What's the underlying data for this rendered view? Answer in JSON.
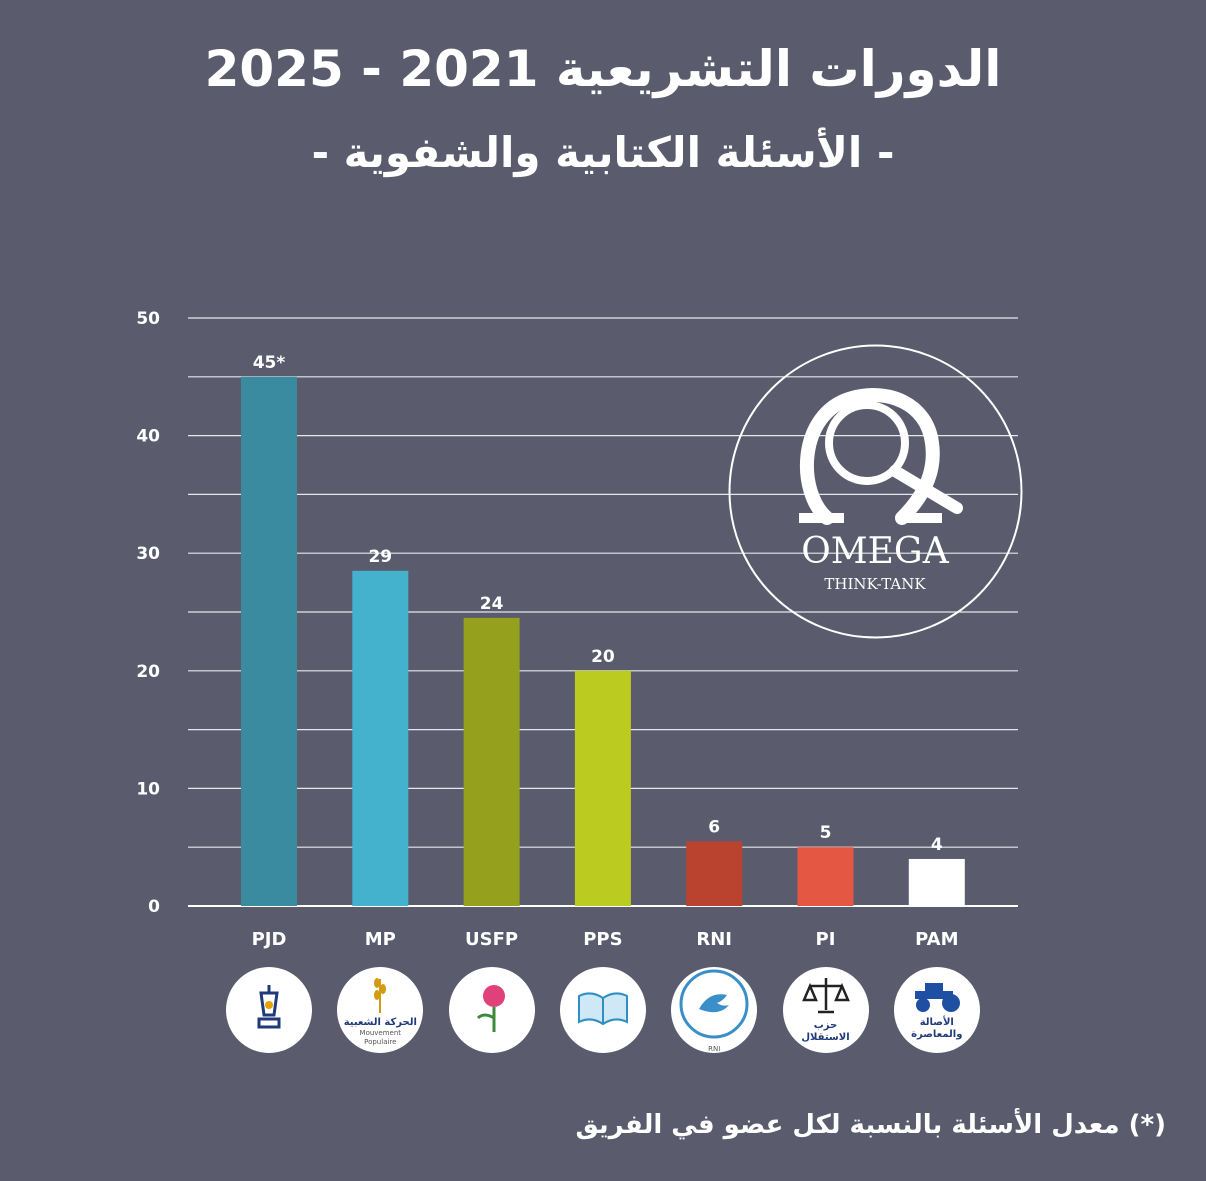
{
  "header": {
    "title": "الدورات التشريعية 2021 - 2025",
    "subtitle": "- الأسئلة الكتابية والشفوية -"
  },
  "chart_data": {
    "type": "bar",
    "title": "الدورات التشريعية 2021 - 2025",
    "subtitle": "- الأسئلة الكتابية والشفوية -",
    "xlabel": "",
    "ylabel": "",
    "ylim": [
      0,
      50
    ],
    "yticks": [
      0,
      10,
      20,
      30,
      40,
      50
    ],
    "grid": true,
    "categories": [
      "PJD",
      "MP",
      "USFP",
      "PPS",
      "RNI",
      "PI",
      "PAM"
    ],
    "values": [
      45,
      28.5,
      24.5,
      20,
      5.5,
      5,
      4
    ],
    "data_labels": [
      "45*",
      "29",
      "24",
      "20",
      "6",
      "5",
      "4"
    ],
    "colors": [
      "#3a8aa0",
      "#44b1cd",
      "#95a01d",
      "#bccb1f",
      "#b9432f",
      "#e35743",
      "#ffffff"
    ]
  },
  "watermark": {
    "brand": "OMEGA",
    "tagline": "THINK-TANK"
  },
  "logos": [
    {
      "icon": "lamp-icon",
      "text": "",
      "sub": ""
    },
    {
      "icon": "wheat-icon",
      "text": "الحركة الشعبية",
      "sub": "Mouvement Populaire"
    },
    {
      "icon": "rose-icon",
      "text": "",
      "sub": ""
    },
    {
      "icon": "book-icon",
      "text": "",
      "sub": ""
    },
    {
      "icon": "dove-icon",
      "text": "",
      "sub": "RNI"
    },
    {
      "icon": "scales-icon",
      "text": "حزب الاستقلال",
      "sub": ""
    },
    {
      "icon": "tractor-icon",
      "text": "الأصالة والمعاصرة",
      "sub": ""
    }
  ],
  "footnote": "(*) معدل الأسئلة بالنسبة لكل عضو في الفريق"
}
